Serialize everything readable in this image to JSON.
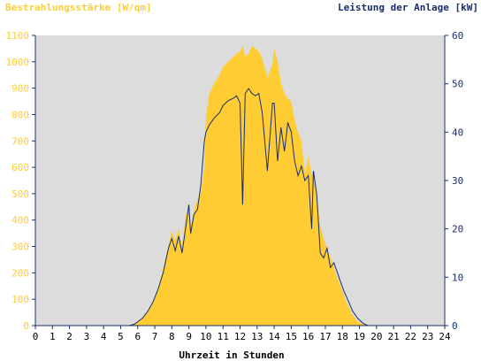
{
  "chart_data": {
    "type": "area",
    "left_axis_title": "Bestrahlungsstärke [W/qm]",
    "right_axis_title": "Leistung der Anlage [kW]",
    "xlabel": "Uhrzeit in Stunden",
    "xlim": [
      0,
      24
    ],
    "ylim_left": [
      0,
      1100
    ],
    "ylim_right": [
      0,
      60
    ],
    "x_ticks": [
      "0",
      "1",
      "2",
      "3",
      "4",
      "5",
      "6",
      "7",
      "8",
      "9",
      "10",
      "11",
      "12",
      "13",
      "14",
      "15",
      "16",
      "17",
      "18",
      "19",
      "20",
      "21",
      "22",
      "23",
      "24"
    ],
    "y_left_ticks": [
      "0",
      "100",
      "200",
      "300",
      "400",
      "500",
      "600",
      "700",
      "800",
      "900",
      "1000",
      "1100"
    ],
    "y_right_ticks": [
      "0",
      "10",
      "20",
      "30",
      "40",
      "50",
      "60"
    ],
    "grid": false,
    "colors": {
      "irradiance": "#ffcc33",
      "power": "#1a2e6b",
      "plot_background": "#dcdcdc",
      "left_axis_text": "#ffcc33",
      "right_axis_text": "#1a2e6b"
    },
    "series": [
      {
        "name": "Bestrahlungsstärke [W/qm]",
        "axis": "left",
        "x": [
          0,
          5.5,
          5.8,
          6.0,
          6.3,
          6.6,
          6.9,
          7.2,
          7.5,
          7.8,
          8.0,
          8.2,
          8.4,
          8.6,
          8.8,
          9.0,
          9.1,
          9.3,
          9.5,
          9.7,
          9.9,
          10.0,
          10.2,
          10.5,
          10.8,
          11.0,
          11.3,
          11.6,
          11.8,
          12.0,
          12.15,
          12.3,
          12.5,
          12.7,
          12.9,
          13.1,
          13.3,
          13.6,
          13.9,
          14.0,
          14.2,
          14.4,
          14.6,
          14.8,
          15.0,
          15.2,
          15.4,
          15.6,
          15.8,
          16.0,
          16.2,
          16.3,
          16.5,
          16.7,
          16.9,
          17.1,
          17.3,
          17.5,
          17.7,
          17.9,
          18.1,
          18.3,
          18.6,
          18.9,
          19.2,
          19.5,
          19.8,
          20.0,
          24
        ],
        "y": [
          0,
          0,
          5,
          15,
          30,
          55,
          90,
          140,
          220,
          300,
          360,
          320,
          370,
          290,
          420,
          440,
          370,
          440,
          480,
          500,
          600,
          790,
          880,
          920,
          950,
          980,
          1000,
          1020,
          1030,
          1040,
          1060,
          1020,
          1030,
          1060,
          1050,
          1040,
          1010,
          940,
          990,
          1050,
          1000,
          920,
          880,
          860,
          850,
          780,
          730,
          700,
          580,
          640,
          570,
          590,
          470,
          380,
          330,
          290,
          260,
          220,
          180,
          150,
          110,
          80,
          40,
          15,
          5,
          0,
          0,
          0,
          0
        ]
      },
      {
        "name": "Leistung der Anlage [kW]",
        "axis": "right",
        "x": [
          0,
          5.5,
          5.8,
          6.0,
          6.3,
          6.6,
          6.9,
          7.2,
          7.5,
          7.8,
          8.0,
          8.2,
          8.4,
          8.6,
          8.8,
          9.0,
          9.1,
          9.3,
          9.5,
          9.7,
          9.9,
          10.0,
          10.2,
          10.5,
          10.8,
          11.0,
          11.3,
          11.6,
          11.8,
          12.0,
          12.15,
          12.3,
          12.5,
          12.7,
          12.9,
          13.1,
          13.3,
          13.6,
          13.9,
          14.0,
          14.2,
          14.4,
          14.6,
          14.8,
          15.0,
          15.2,
          15.4,
          15.6,
          15.8,
          16.0,
          16.2,
          16.3,
          16.5,
          16.7,
          16.9,
          17.1,
          17.3,
          17.5,
          17.7,
          17.9,
          18.1,
          18.3,
          18.6,
          18.9,
          19.2,
          19.5,
          19.8,
          20.0,
          24
        ],
        "y": [
          0,
          0,
          0.3,
          0.8,
          1.6,
          3,
          4.9,
          7.6,
          11,
          16,
          18,
          15.5,
          18.5,
          15,
          20,
          25,
          19,
          23,
          24,
          29,
          38,
          40,
          41.5,
          43,
          44,
          45.5,
          46.5,
          47,
          47.5,
          46,
          25,
          48,
          49,
          48,
          47.5,
          48,
          44,
          32,
          46,
          46,
          34,
          41,
          36,
          42,
          40,
          34,
          31,
          33,
          30,
          31,
          20,
          32,
          27,
          15,
          14,
          16,
          12,
          13,
          11,
          9,
          7,
          5.5,
          3,
          1.5,
          0.5,
          0,
          0,
          0,
          0
        ]
      }
    ]
  }
}
